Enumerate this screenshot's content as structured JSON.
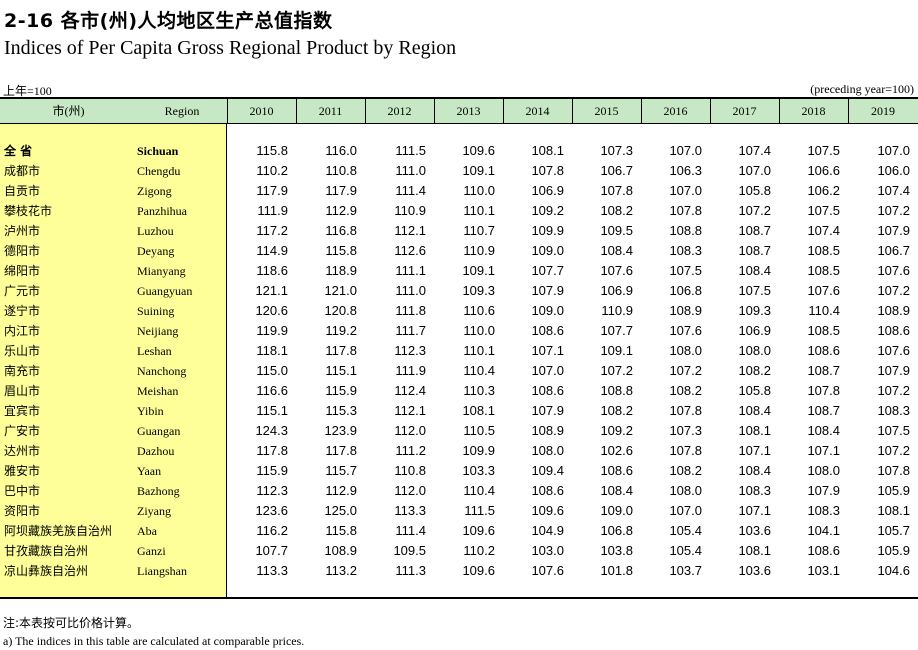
{
  "title": {
    "cn": "2-16  各市(州)人均地区生产总值指数",
    "en": "Indices of Per Capita Gross Regional Product by Region"
  },
  "unit": {
    "cn": "上年=100",
    "en": "(preceding year=100)"
  },
  "columns": {
    "region_cn": "市(州)",
    "region_en": "Region",
    "years": [
      "2010",
      "2011",
      "2012",
      "2013",
      "2014",
      "2015",
      "2016",
      "2017",
      "2018",
      "2019"
    ]
  },
  "rows": [
    {
      "cn": "全 省",
      "en": "Sichuan",
      "bold": true,
      "values": [
        "115.8",
        "116.0",
        "111.5",
        "109.6",
        "108.1",
        "107.3",
        "107.0",
        "107.4",
        "107.5",
        "107.0"
      ]
    },
    {
      "cn": "成都市",
      "en": "Chengdu",
      "values": [
        "110.2",
        "110.8",
        "111.0",
        "109.1",
        "107.8",
        "106.7",
        "106.3",
        "107.0",
        "106.6",
        "106.0"
      ]
    },
    {
      "cn": "自贡市",
      "en": "Zigong",
      "values": [
        "117.9",
        "117.9",
        "111.4",
        "110.0",
        "106.9",
        "107.8",
        "107.0",
        "105.8",
        "106.2",
        "107.4"
      ]
    },
    {
      "cn": "攀枝花市",
      "en": "Panzhihua",
      "values": [
        "111.9",
        "112.9",
        "110.9",
        "110.1",
        "109.2",
        "108.2",
        "107.8",
        "107.2",
        "107.5",
        "107.2"
      ]
    },
    {
      "cn": "泸州市",
      "en": "Luzhou",
      "values": [
        "117.2",
        "116.8",
        "112.1",
        "110.7",
        "109.9",
        "109.5",
        "108.8",
        "108.7",
        "107.4",
        "107.9"
      ]
    },
    {
      "cn": "德阳市",
      "en": "Deyang",
      "values": [
        "114.9",
        "115.8",
        "112.6",
        "110.9",
        "109.0",
        "108.4",
        "108.3",
        "108.7",
        "108.5",
        "106.7"
      ]
    },
    {
      "cn": "绵阳市",
      "en": "Mianyang",
      "values": [
        "118.6",
        "118.9",
        "111.1",
        "109.1",
        "107.7",
        "107.6",
        "107.5",
        "108.4",
        "108.5",
        "107.6"
      ]
    },
    {
      "cn": "广元市",
      "en": "Guangyuan",
      "values": [
        "121.1",
        "121.0",
        "111.0",
        "109.3",
        "107.9",
        "106.9",
        "106.8",
        "107.5",
        "107.6",
        "107.2"
      ]
    },
    {
      "cn": "遂宁市",
      "en": "Suining",
      "values": [
        "120.6",
        "120.8",
        "111.8",
        "110.6",
        "109.0",
        "110.9",
        "108.9",
        "109.3",
        "110.4",
        "108.9"
      ]
    },
    {
      "cn": "内江市",
      "en": "Neijiang",
      "values": [
        "119.9",
        "119.2",
        "111.7",
        "110.0",
        "108.6",
        "107.7",
        "107.6",
        "106.9",
        "108.5",
        "108.6"
      ]
    },
    {
      "cn": "乐山市",
      "en": "Leshan",
      "values": [
        "118.1",
        "117.8",
        "112.3",
        "110.1",
        "107.1",
        "109.1",
        "108.0",
        "108.0",
        "108.6",
        "107.6"
      ]
    },
    {
      "cn": "南充市",
      "en": "Nanchong",
      "values": [
        "115.0",
        "115.1",
        "111.9",
        "110.4",
        "107.0",
        "107.2",
        "107.2",
        "108.2",
        "108.7",
        "107.9"
      ]
    },
    {
      "cn": "眉山市",
      "en": "Meishan",
      "values": [
        "116.6",
        "115.9",
        "112.4",
        "110.3",
        "108.6",
        "108.8",
        "108.2",
        "105.8",
        "107.8",
        "107.2"
      ]
    },
    {
      "cn": "宜宾市",
      "en": "Yibin",
      "values": [
        "115.1",
        "115.3",
        "112.1",
        "108.1",
        "107.9",
        "108.2",
        "107.8",
        "108.4",
        "108.7",
        "108.3"
      ]
    },
    {
      "cn": "广安市",
      "en": "Guangan",
      "values": [
        "124.3",
        "123.9",
        "112.0",
        "110.5",
        "108.9",
        "109.2",
        "107.3",
        "108.1",
        "108.4",
        "107.5"
      ]
    },
    {
      "cn": "达州市",
      "en": "Dazhou",
      "values": [
        "117.8",
        "117.8",
        "111.2",
        "109.9",
        "108.0",
        "102.6",
        "107.8",
        "107.1",
        "107.1",
        "107.2"
      ]
    },
    {
      "cn": "雅安市",
      "en": "Yaan",
      "values": [
        "115.9",
        "115.7",
        "110.8",
        "103.3",
        "109.4",
        "108.6",
        "108.2",
        "108.4",
        "108.0",
        "107.8"
      ]
    },
    {
      "cn": "巴中市",
      "en": "Bazhong",
      "values": [
        "112.3",
        "112.9",
        "112.0",
        "110.4",
        "108.6",
        "108.4",
        "108.0",
        "108.3",
        "107.9",
        "105.9"
      ]
    },
    {
      "cn": "资阳市",
      "en": "Ziyang",
      "values": [
        "123.6",
        "125.0",
        "113.3",
        "111.5",
        "109.6",
        "109.0",
        "107.0",
        "107.1",
        "108.3",
        "108.1"
      ]
    },
    {
      "cn": "阿坝藏族羌族自治州",
      "en": "Aba",
      "values": [
        "116.2",
        "115.8",
        "111.4",
        "109.6",
        "104.9",
        "106.8",
        "105.4",
        "103.6",
        "104.1",
        "105.7"
      ]
    },
    {
      "cn": "甘孜藏族自治州",
      "en": "Ganzi",
      "values": [
        "107.7",
        "108.9",
        "109.5",
        "110.2",
        "103.0",
        "103.8",
        "105.4",
        "108.1",
        "108.6",
        "105.9"
      ]
    },
    {
      "cn": "凉山彝族自治州",
      "en": "Liangshan",
      "values": [
        "113.3",
        "113.2",
        "111.3",
        "109.6",
        "107.6",
        "101.8",
        "103.7",
        "103.6",
        "103.1",
        "104.6"
      ]
    }
  ],
  "notes": {
    "cn": "注:本表按可比价格计算。",
    "en": "a) The indices in this table are calculated at comparable prices."
  },
  "colors": {
    "header_bg": "#c6e8c4",
    "left_bg": "#ffff99"
  }
}
